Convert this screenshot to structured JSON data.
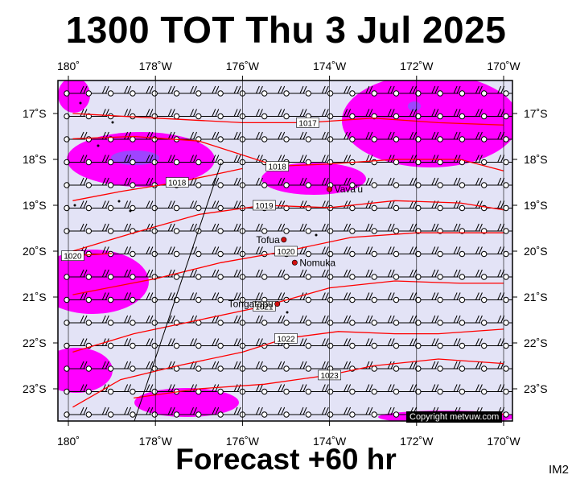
{
  "title": "1300 TOT Thu 3 Jul 2025",
  "footer": "Forecast +60 hr",
  "tag": "IM2",
  "copyright": "Copyright metvuw.com",
  "lon_labels": [
    "180˚",
    "178˚W",
    "176˚W",
    "174˚W",
    "172˚W",
    "170˚W"
  ],
  "lat_labels": [
    "17˚S",
    "18˚S",
    "19˚S",
    "20˚S",
    "21˚S",
    "22˚S",
    "23˚S"
  ],
  "places": [
    {
      "name": "Vava'u",
      "lon": -174.0,
      "lat": -18.65
    },
    {
      "name": "Tofua",
      "lon": -175.05,
      "lat": -19.75
    },
    {
      "name": "Nomuka",
      "lon": -174.8,
      "lat": -20.25
    },
    {
      "name": "Tongatapu",
      "lon": -175.2,
      "lat": -21.15
    }
  ],
  "isobars": [
    {
      "label": "1017",
      "points": [
        [
          -179.9,
          -17.0
        ],
        [
          -178.0,
          -17.1
        ],
        [
          -176.0,
          -17.2
        ],
        [
          -174.5,
          -17.2
        ],
        [
          -173.0,
          -17.1
        ],
        [
          -171.5,
          -17.2
        ],
        [
          -170.0,
          -17.25
        ]
      ]
    },
    {
      "label": "1018",
      "points": [
        [
          -179.9,
          -17.55
        ],
        [
          -178.5,
          -17.5
        ],
        [
          -177.0,
          -17.6
        ],
        [
          -175.2,
          -18.15
        ],
        [
          -174.0,
          -18.1
        ],
        [
          -172.5,
          -18.0
        ],
        [
          -171.0,
          -18.0
        ],
        [
          -170.0,
          -18.25
        ]
      ]
    },
    {
      "label": "1018",
      "points": [
        [
          -179.9,
          -18.9
        ],
        [
          -178.8,
          -18.7
        ],
        [
          -177.5,
          -18.5
        ],
        [
          -176.5,
          -18.3
        ],
        [
          -176.0,
          -18.2
        ]
      ]
    },
    {
      "label": "1019",
      "points": [
        [
          -179.9,
          -20.0
        ],
        [
          -178.5,
          -19.6
        ],
        [
          -177.0,
          -19.2
        ],
        [
          -175.5,
          -19.0
        ],
        [
          -174.0,
          -19.05
        ],
        [
          -172.5,
          -18.9
        ],
        [
          -171.0,
          -18.95
        ],
        [
          -170.0,
          -19.1
        ]
      ]
    },
    {
      "label": "1020",
      "points": [
        [
          -179.9,
          -20.95
        ],
        [
          -178.0,
          -20.6
        ],
        [
          -176.5,
          -20.25
        ],
        [
          -175.0,
          -20.0
        ],
        [
          -173.5,
          -19.7
        ],
        [
          -172.0,
          -19.6
        ],
        [
          -170.0,
          -19.6
        ]
      ]
    },
    {
      "label": "1020",
      "points": [
        [
          -179.9,
          -20.1
        ],
        [
          -179.0,
          -20.05
        ]
      ]
    },
    {
      "label": "1021",
      "points": [
        [
          -179.9,
          -22.2
        ],
        [
          -178.5,
          -21.8
        ],
        [
          -177.0,
          -21.5
        ],
        [
          -175.5,
          -21.2
        ],
        [
          -174.0,
          -20.8
        ],
        [
          -172.5,
          -20.65
        ],
        [
          -171.0,
          -20.7
        ],
        [
          -170.0,
          -20.7
        ]
      ]
    },
    {
      "label": "1022",
      "points": [
        [
          -179.9,
          -23.4
        ],
        [
          -178.8,
          -22.8
        ],
        [
          -177.5,
          -22.5
        ],
        [
          -176.0,
          -22.2
        ],
        [
          -175.0,
          -21.9
        ],
        [
          -173.8,
          -21.75
        ],
        [
          -172.5,
          -21.8
        ],
        [
          -171.5,
          -21.8
        ],
        [
          -170.0,
          -21.7
        ]
      ]
    },
    {
      "label": "1023",
      "points": [
        [
          -178.5,
          -23.2
        ],
        [
          -177.0,
          -23.0
        ],
        [
          -175.5,
          -22.9
        ],
        [
          -174.0,
          -22.7
        ],
        [
          -173.0,
          -22.5
        ],
        [
          -171.5,
          -22.35
        ],
        [
          -170.0,
          -22.45
        ]
      ]
    },
    {
      "label": "",
      "points": [
        [
          -172.5,
          -23.75
        ],
        [
          -171.0,
          -23.6
        ],
        [
          -170.0,
          -23.55
        ]
      ]
    }
  ],
  "colors": {
    "background": "#e3e3f6",
    "precip_light": "#ff00ff",
    "precip_heavy": "#9f44ff",
    "isobar": "#ff0000",
    "place": "#d01010",
    "wind": "#000000"
  }
}
